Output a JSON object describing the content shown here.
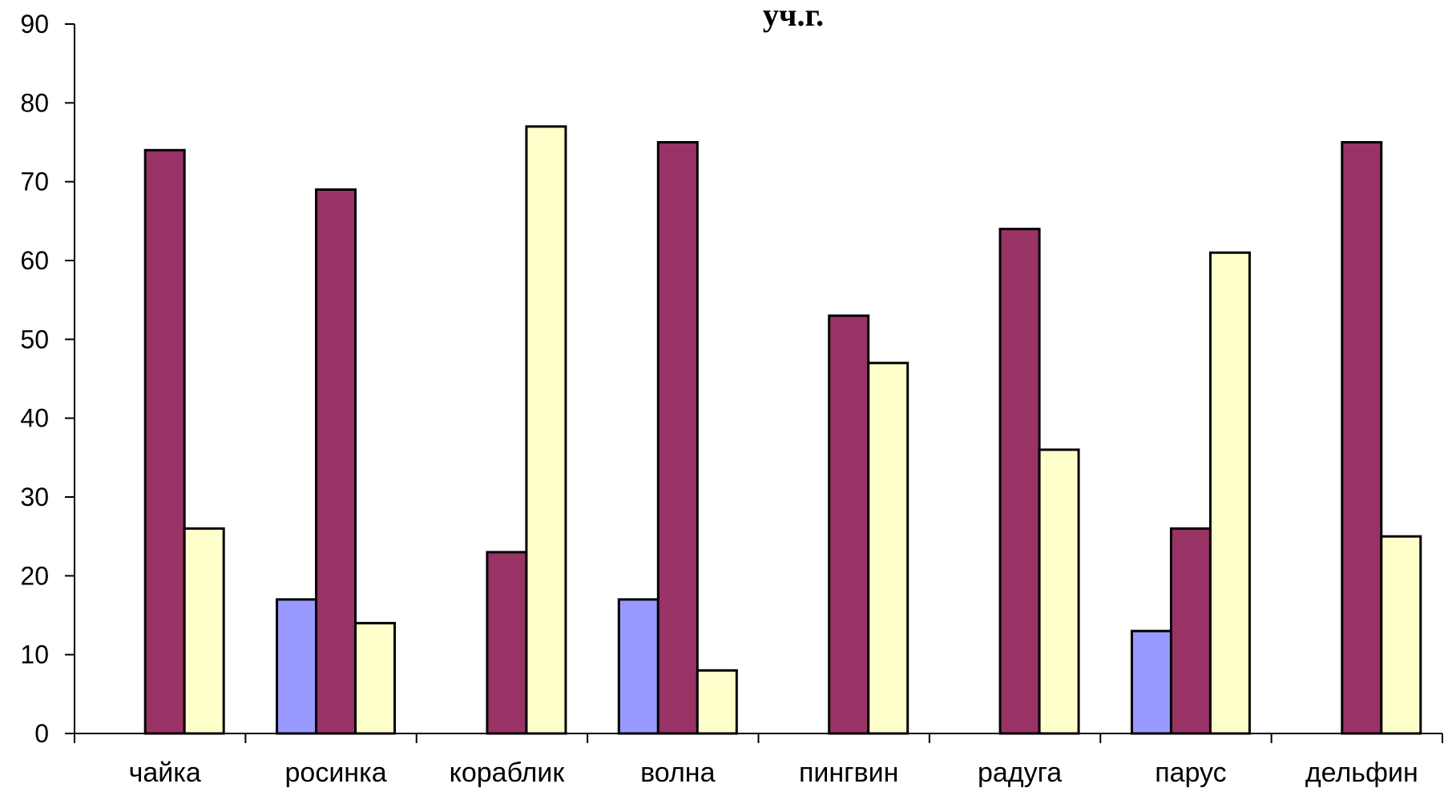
{
  "chart_data": {
    "type": "bar",
    "title": "уч.г.",
    "xlabel": "",
    "ylabel": "",
    "ylim": [
      0,
      90
    ],
    "yticks": [
      0,
      10,
      20,
      30,
      40,
      50,
      60,
      70,
      80,
      90
    ],
    "grid": false,
    "legend": "none",
    "categories": [
      "чайка",
      "росинка",
      "кораблик",
      "волна",
      "пингвин",
      "радуга",
      "парус",
      "дельфин"
    ],
    "series": [
      {
        "color": "#9999ff",
        "values": [
          0,
          17,
          0,
          17,
          0,
          0,
          13,
          0
        ]
      },
      {
        "color": "#993366",
        "values": [
          74,
          69,
          23,
          75,
          53,
          64,
          26,
          75
        ]
      },
      {
        "color": "#ffffcc",
        "values": [
          26,
          14,
          77,
          8,
          47,
          36,
          61,
          25
        ]
      }
    ]
  }
}
